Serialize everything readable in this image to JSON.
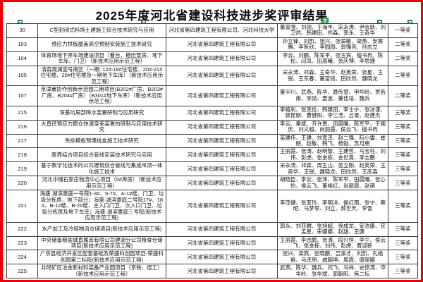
{
  "title": "2025年度河北省建设科技进步奖评审结果",
  "markers": {
    "tag_label": "T"
  },
  "colors": {
    "frame_red": "#e8000a",
    "marker_green": "#2fae57",
    "grid": "#3c3c3c"
  },
  "table": {
    "rows": [
      {
        "no": "30",
        "project": "C型封闭式料场土建施工综合技术研究与应用",
        "org": "河北省第四建筑工程有限公司、河北科技大学",
        "people": "董富强、刘阔、于海丰、宋永涛、尹会跃、刘卫然、韩建田、祁森、郭永、王奇华",
        "award": "一等奖"
      },
      {
        "no": "103",
        "project": "预应力拱板屋盖高空预制安装施工技术研究",
        "org": "河北省第四建筑工程有限公司",
        "people": "孙立锋、刘凯、张兴、张翠敏、梁燕、安赛腾、李昕欣、李园园、郭强亮、孙志立",
        "award": "二等奖"
      },
      {
        "no": "104",
        "project": "体育场地下停车场建设项目（看台、稳压泵房、地下车库、门卫）（新技术应用示范工程）",
        "org": "河北省第四建筑工程有限公司",
        "people": "李云、刘鹏、陈军平、张玉宾、檀书冉、陈松、闫凤、田晨曦、张庆博、李思捷",
        "award": "二等奖"
      },
      {
        "no": "105",
        "project": "清森观澜壹号南区（一期: 12#-18#住宅楼、20#-21#住宅楼、25#住宅楼及一期地下车库）（新技术应用示范工程）",
        "org": "河北省第四建筑工程有限公司",
        "people": "宋永涛、祁森、王奇华、赵英荣、张星、王锐、王东春、董富铭、田欣然、魏晓龙",
        "award": "二等奖"
      },
      {
        "no": "107",
        "project": "京津冀协作创新示范园二期项目(B202#厂房、B203#厂房、B204#厂房）（B301#地下车库）（新技术应用示范工程）",
        "org": "河北省第四建筑工程有限公司",
        "people": "董宇川、武燕、陈华、聂传慧、申华岭、贾若南、李勋、姜波、董佳培、魏兵",
        "award": "二等奖"
      },
      {
        "no": "215",
        "project": "深基坑局部降水装置研制与应用研究",
        "org": "河北省第四建筑工程有限公司",
        "people": "李植利、张克俭、韩建田、李士宁、张冰谨、郭昆朋、曹健阳、李江浩、吕录、赵建杰",
        "award": "三等奖"
      },
      {
        "no": "216",
        "project": "大直径预应力筒仓快速穿束装置的研制与应用技术研究",
        "org": "河北省第四建筑工程有限公司",
        "people": "李云、秦斌、齐许恩、田晨曦、陈军平、于国庆、刘义超、尚丽霞、侯云飞、檀书冉",
        "award": "三等奖"
      },
      {
        "no": "217",
        "project": "免拆模板预埋线盒施工技术研究",
        "org": "河北省第四建筑工程有限公司",
        "people": "苗建伟、王建、刘宽泽、赵二强、阮小雷、崔朋、赵敬、韩飞、杨勃、苏月朋",
        "award": "三等奖"
      },
      {
        "no": "218",
        "project": "医养结合项目综合管线安装技术研究与应用",
        "org": "河北省第四建筑工程有限公司",
        "people": "王丽霞、张涛、赵明智、王建哲、马宝柱、刘伟、彭虎、张金栋、金世真、李志鹏",
        "award": "三等奖"
      },
      {
        "no": "219",
        "project": "基于数字化技术的公共建筑综合管线与集成吊顶一体化施工技术",
        "org": "河北省第四建筑工程有限公司",
        "people": "宋永涛、祁森、周王山、苗立刚、赵英荣、王奇华、王锐、魏晓龙、田欣然、王彦森",
        "award": "三等奖"
      },
      {
        "no": "220",
        "project": "河北中储石家庄物流中心项目（5#库房）（新技术应用示范工程）",
        "org": "河北省第四建筑工程有限公司",
        "people": "胡晓臣、李云、张泽、陈军平、田晨曦、张心怡、侯云飞、董艳红、尚丽霞、赵萌",
        "award": "三等奖"
      },
      {
        "no": "221",
        "project": "海盛·湖滨豪庭一号院1-3#、5-7#、A-1#楼、门卫、垃圾分拣房、地下部分；海盛·湖滨豪庭二号院17#、18#、B-1#楼、B-2#楼、主入口门卫、次入口门卫、垃圾分拣房及地下车库；海盛·湖滨豪庭三号院(新技术应用示范工程)",
        "org": "河北省第四建筑工程有限公司",
        "people": "李茂健、张亚玲、李明洋、侯红雨、张宁、蔡昭、马梦思、刘立、郝世天、李雪",
        "award": "三等奖"
      },
      {
        "no": "222",
        "project": "水产加工及冷链物流仓储项目(新技术应用示范工程)",
        "org": "河北省第四建筑工程有限公司",
        "people": "郭永、刘亚麟、张旭超、徐成龙、安浩康、苌孟星、宋娜娜、赵甜、王健",
        "award": "三等奖"
      },
      {
        "no": "223",
        "project": "中央储备粮盐城直属库有限公司建湖分公司粮食仓储项目(新技术应用示范工程)",
        "org": "河北省第四建筑工程有限公司",
        "people": "王丽霞、李志鹏、张涛、段兴恒、李宁、侯云飞、张金栋、刘伟、彭虎、曹迎新",
        "award": "三等奖"
      },
      {
        "no": "224",
        "project": "广宗县经济开发区配套基础及荣盛科创园项目-荣盛科创园第二标段(新技术应用示范工程)",
        "org": "河北省第四建筑工程有限公司",
        "people": "张兴、梁燕、张晓鹏、吕滚才、刘凯、孔艳艳、马泽朋、戚朝坤、周霞、康丽娜",
        "award": "三等奖"
      },
      {
        "no": "225",
        "project": "井陉矿区冶金新材料装备产业园项目（京铁、煜工）（新技术应用示范工程）",
        "org": "河北省第四建筑工程有限公司",
        "people": "武燕、陈华、魏兵、闫飞、马祥、史惊涛、申华岭、张华斌、郭朝阳、焦二坛",
        "award": "三等奖"
      }
    ]
  }
}
